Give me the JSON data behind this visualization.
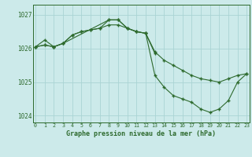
{
  "background_color": "#cceaea",
  "grid_color": "#aad4d4",
  "line_color": "#2d6a2d",
  "hours": [
    0,
    1,
    2,
    3,
    4,
    5,
    6,
    7,
    8,
    9,
    10,
    11,
    12,
    13,
    14,
    15,
    16,
    17,
    18,
    19,
    20,
    21,
    22,
    23
  ],
  "line1": [
    1026.05,
    1026.25,
    1026.05,
    1026.15,
    1026.4,
    1026.5,
    1026.55,
    1026.6,
    1026.7,
    1026.7,
    1026.6,
    1026.5,
    1026.45,
    1025.9,
    1025.65,
    1025.5,
    1025.35,
    1025.2,
    1025.1,
    1025.05,
    1025.0,
    1025.1,
    1025.2,
    1025.25
  ],
  "line2_x": [
    0,
    1,
    2,
    3,
    4,
    5,
    6,
    7,
    8,
    9,
    10,
    11,
    12,
    13
  ],
  "line2_y": [
    1026.05,
    1026.1,
    1026.05,
    1026.15,
    1026.4,
    1026.5,
    1026.55,
    1026.6,
    1026.85,
    1026.85,
    1026.6,
    1026.5,
    1026.45,
    1025.85
  ],
  "line3_x": [
    0,
    1,
    2,
    3,
    8,
    9,
    10,
    11,
    12,
    13,
    14,
    15,
    16,
    17,
    18,
    19,
    20,
    21,
    22,
    23
  ],
  "line3_y": [
    1026.05,
    1026.1,
    1026.05,
    1026.15,
    1026.85,
    1026.85,
    1026.6,
    1026.5,
    1026.45,
    1025.2,
    1024.85,
    1024.6,
    1024.5,
    1024.4,
    1024.2,
    1024.1,
    1024.2,
    1024.45,
    1025.0,
    1025.25
  ],
  "ylim": [
    1023.8,
    1027.3
  ],
  "yticks": [
    1024,
    1025,
    1026,
    1027
  ],
  "xlabel": "Graphe pression niveau de la mer (hPa)"
}
